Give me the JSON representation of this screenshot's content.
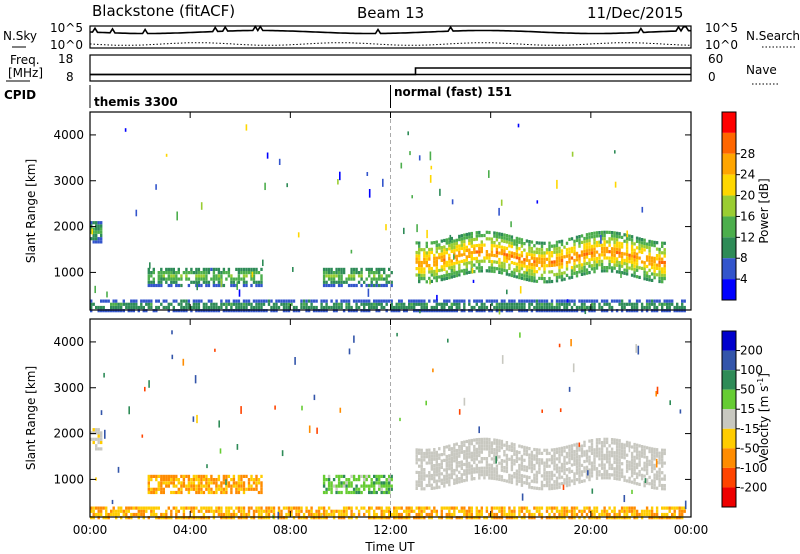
{
  "header": {
    "station": "Blackstone (fitACF)",
    "beam": "Beam 13",
    "date": "11/Dec/2015"
  },
  "noise_panel": {
    "left_label": "N.Sky",
    "right_label": "N.Search",
    "left_ticks": [
      "10^5",
      "10^0"
    ],
    "right_ticks": [
      "10^5",
      "10^0"
    ]
  },
  "freq_panel": {
    "left_label_1": "Freq.",
    "left_label_2": "[MHz]",
    "right_label": "Nave",
    "left_ticks": [
      "18",
      "8"
    ],
    "right_ticks": [
      "60",
      "0"
    ]
  },
  "cpid_panel": {
    "label": "CPID",
    "modes": [
      {
        "name": "themis 3300",
        "start_hour": 0
      },
      {
        "name": "normal (fast) 151",
        "start_hour": 12
      }
    ]
  },
  "power_panel": {
    "ylabel": "Slant Range [km]",
    "yticks": [
      "1000",
      "2000",
      "3000",
      "4000"
    ],
    "colorbar_label": "Power [dB]",
    "colorbar_ticks": [
      "4",
      "8",
      "12",
      "16",
      "20",
      "24",
      "28"
    ],
    "colors": [
      "#0000ff",
      "#3355cc",
      "#2e8b57",
      "#4cae4c",
      "#9acd32",
      "#ffd700",
      "#ffa500",
      "#ff6600",
      "#ff0000"
    ]
  },
  "velocity_panel": {
    "ylabel": "Slant Range [km]",
    "yticks": [
      "1000",
      "2000",
      "3000",
      "4000"
    ],
    "colorbar_label": "Velocity [m s",
    "colorbar_label_sup": "-1",
    "colorbar_label_end": "]",
    "colorbar_ticks": [
      "200",
      "100",
      "50",
      "15",
      "-15",
      "-50",
      "-100",
      "-200"
    ],
    "colors": [
      "#0000cc",
      "#3355aa",
      "#2e8b57",
      "#66cc33",
      "#c8c8c0",
      "#ffcc00",
      "#ff8c00",
      "#ff4400",
      "#ee0000"
    ]
  },
  "xaxis": {
    "label": "Time UT",
    "ticks": [
      "00:00",
      "04:00",
      "08:00",
      "12:00",
      "16:00",
      "20:00",
      "00:00"
    ]
  },
  "chart_data": {
    "type": "heatmap",
    "title": "Blackstone (fitACF)  Beam 13  11/Dec/2015",
    "xlabel": "Time UT",
    "ylabel": "Slant Range [km]",
    "xlim_hours": [
      0,
      24
    ],
    "ylim_km": [
      180,
      4500
    ],
    "echo_regions": [
      {
        "t0": 0.0,
        "t1": 0.5,
        "r0": 1700,
        "r1": 2150,
        "power": 9,
        "velocity": -5
      },
      {
        "t0": 2.3,
        "t1": 6.8,
        "r0": 750,
        "r1": 1150,
        "power": 10,
        "velocity": -35
      },
      {
        "t0": 9.3,
        "t1": 12.0,
        "r0": 750,
        "r1": 1150,
        "power": 10,
        "velocity": 25
      },
      {
        "t0": 13.0,
        "t1": 23.0,
        "r0": 950,
        "r1": 1800,
        "power": 18,
        "velocity": 0
      },
      {
        "t0": 0.0,
        "t1": 23.8,
        "r0": 200,
        "r1": 420,
        "power": 8,
        "velocity": -30
      }
    ],
    "freq_mhz": [
      {
        "t0": 0,
        "t1": 13,
        "value": 10.5
      },
      {
        "t0": 13,
        "t1": 24,
        "value": 10.5
      }
    ],
    "nave": [
      {
        "t0": 0,
        "t1": 13,
        "value": 15
      },
      {
        "t0": 13,
        "t1": 24,
        "value": 30
      }
    ],
    "power_colorbar_db": [
      4,
      8,
      12,
      16,
      20,
      24,
      28
    ],
    "velocity_colorbar_ms": [
      200,
      100,
      50,
      15,
      -15,
      -50,
      -100,
      -200
    ]
  }
}
